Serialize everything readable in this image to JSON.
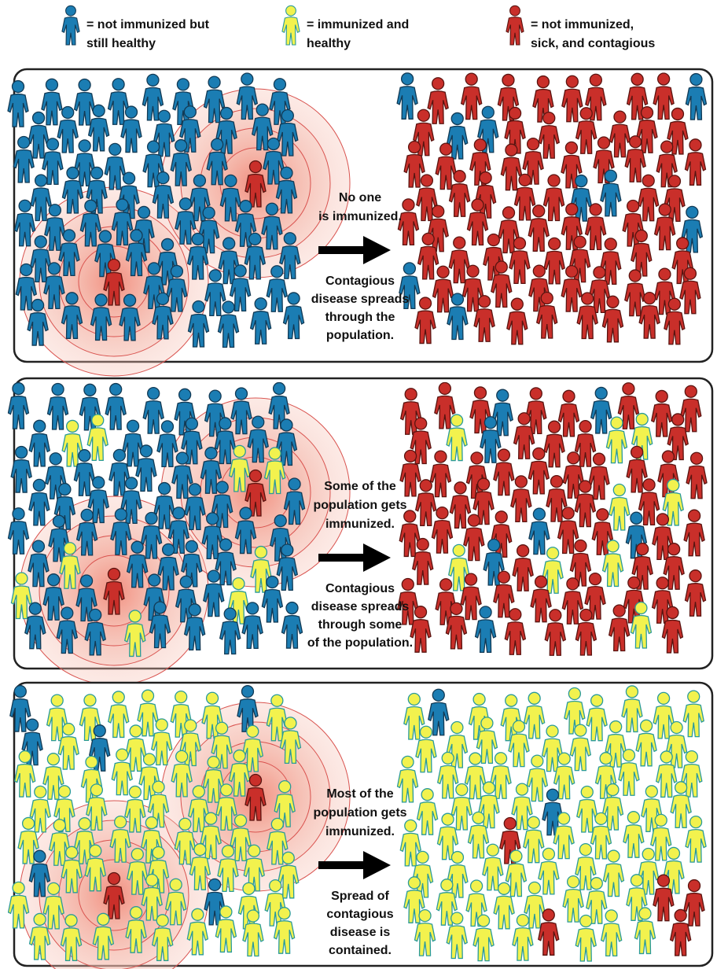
{
  "legend": [
    {
      "lines": [
        "= not immunized but",
        "still healthy"
      ]
    },
    {
      "lines": [
        "= immunized and",
        "healthy"
      ]
    },
    {
      "lines": [
        "= not immunized,",
        "sick, and contagious"
      ]
    }
  ],
  "panels": [
    {
      "top_text": [
        "No one",
        "is immunized."
      ],
      "bottom_text": [
        "Contagious",
        "disease spreads",
        "through the",
        "population."
      ]
    },
    {
      "top_text": [
        "Some of the",
        "population gets",
        "immunized."
      ],
      "bottom_text": [
        "Contagious",
        "disease spreads",
        "through some",
        "of the population."
      ]
    },
    {
      "top_text": [
        "Most of the",
        "population gets",
        "immunized."
      ],
      "bottom_text": [
        "Spread of",
        "contagious",
        "disease is",
        "contained."
      ]
    }
  ]
}
